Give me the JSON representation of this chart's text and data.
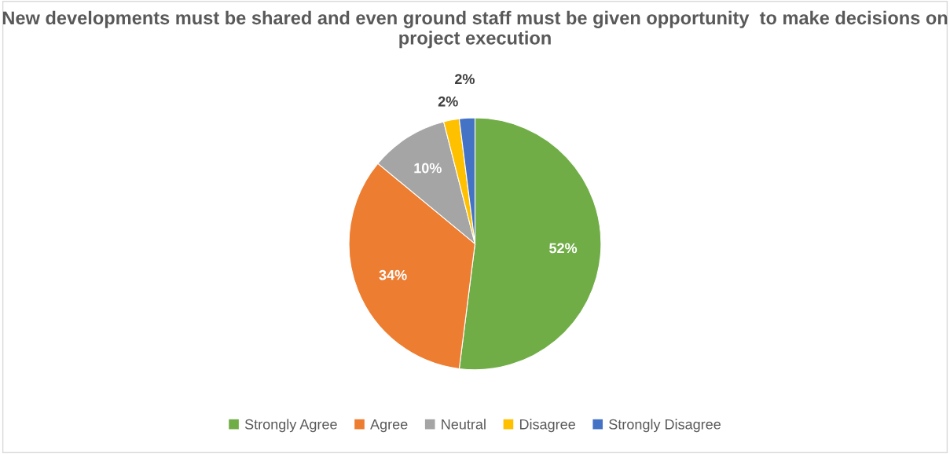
{
  "chart_data": {
    "type": "pie",
    "title": "New developments must be shared and even ground staff must be given opportunity  to make decisions on project execution",
    "categories": [
      "Strongly Agree",
      "Agree",
      "Neutral",
      "Disagree",
      "Strongly Disagree"
    ],
    "values": [
      52,
      34,
      10,
      2,
      2
    ],
    "colors": [
      "#70ad47",
      "#ed7d31",
      "#a5a5a5",
      "#ffc000",
      "#4472c4"
    ],
    "value_labels": [
      "52%",
      "34%",
      "10%",
      "2%",
      "2%"
    ],
    "legend": "bottom"
  }
}
